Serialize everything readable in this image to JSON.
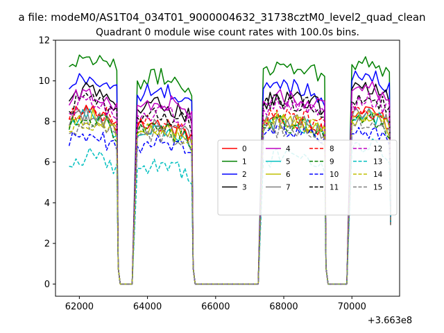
{
  "figure": {
    "suptitle": "a file: modeM0/AS1T04_034T01_9000004632_31738cztM0_level2_quad_clean",
    "title": "Quadrant 0 module wise count rates with 100.0s bins.",
    "offset_label": "+3.663e8"
  },
  "chart_data": {
    "type": "line",
    "title": "Quadrant 0 module wise count rates with 100.0s bins.",
    "xlabel": "",
    "ylabel": "",
    "x_offset": 366300000,
    "xlim": [
      61300,
      71400
    ],
    "ylim": [
      -0.6,
      12
    ],
    "x_ticks": [
      62000,
      64000,
      66000,
      68000,
      70000
    ],
    "y_ticks": [
      0,
      2,
      4,
      6,
      8,
      10,
      12
    ],
    "grid": false,
    "legend_position": "center-right",
    "legend_ncol": 4,
    "segments": [
      {
        "start": 61700,
        "end": 63100
      },
      {
        "start": 63700,
        "end": 65300
      },
      {
        "start": 67400,
        "end": 69200
      },
      {
        "start": 70000,
        "end": 71100
      }
    ],
    "series": [
      {
        "name": "0",
        "color": "#ff0000",
        "dash": "solid",
        "levels": [
          8.3,
          7.7,
          7.9,
          8.3
        ]
      },
      {
        "name": "1",
        "color": "#008000",
        "dash": "solid",
        "levels": [
          10.9,
          10.0,
          10.6,
          10.8
        ]
      },
      {
        "name": "2",
        "color": "#0000ff",
        "dash": "solid",
        "levels": [
          9.8,
          9.3,
          9.6,
          10.0
        ]
      },
      {
        "name": "3",
        "color": "#000000",
        "dash": "solid",
        "levels": [
          9.2,
          8.6,
          9.0,
          9.6
        ]
      },
      {
        "name": "4",
        "color": "#bf00bf",
        "dash": "solid",
        "levels": [
          9.0,
          8.8,
          9.0,
          9.5
        ]
      },
      {
        "name": "5",
        "color": "#00bfbf",
        "dash": "solid",
        "levels": [
          7.9,
          7.3,
          7.8,
          8.1
        ]
      },
      {
        "name": "6",
        "color": "#bfbf00",
        "dash": "solid",
        "levels": [
          7.9,
          7.4,
          7.9,
          8.0
        ]
      },
      {
        "name": "7",
        "color": "#808080",
        "dash": "solid",
        "levels": [
          8.0,
          7.6,
          7.8,
          8.2
        ]
      },
      {
        "name": "8",
        "color": "#ff0000",
        "dash": "dashed",
        "levels": [
          8.3,
          7.8,
          8.1,
          8.4
        ]
      },
      {
        "name": "9",
        "color": "#008000",
        "dash": "dashed",
        "levels": [
          7.8,
          7.4,
          7.7,
          8.0
        ]
      },
      {
        "name": "10",
        "color": "#0000ff",
        "dash": "dashed",
        "levels": [
          7.0,
          6.8,
          7.3,
          7.4
        ]
      },
      {
        "name": "11",
        "color": "#000000",
        "dash": "dashed",
        "levels": [
          8.7,
          8.2,
          8.8,
          9.0
        ]
      },
      {
        "name": "12",
        "color": "#bf00bf",
        "dash": "dashed",
        "levels": [
          8.6,
          8.3,
          8.6,
          8.9
        ]
      },
      {
        "name": "13",
        "color": "#00bfbf",
        "dash": "dashed",
        "levels": [
          6.0,
          5.7,
          6.1,
          6.6
        ]
      },
      {
        "name": "14",
        "color": "#bfbf00",
        "dash": "dashed",
        "levels": [
          7.7,
          7.4,
          7.9,
          8.1
        ]
      },
      {
        "name": "15",
        "color": "#808080",
        "dash": "dashed",
        "levels": [
          7.6,
          7.2,
          7.5,
          7.8
        ]
      }
    ]
  }
}
